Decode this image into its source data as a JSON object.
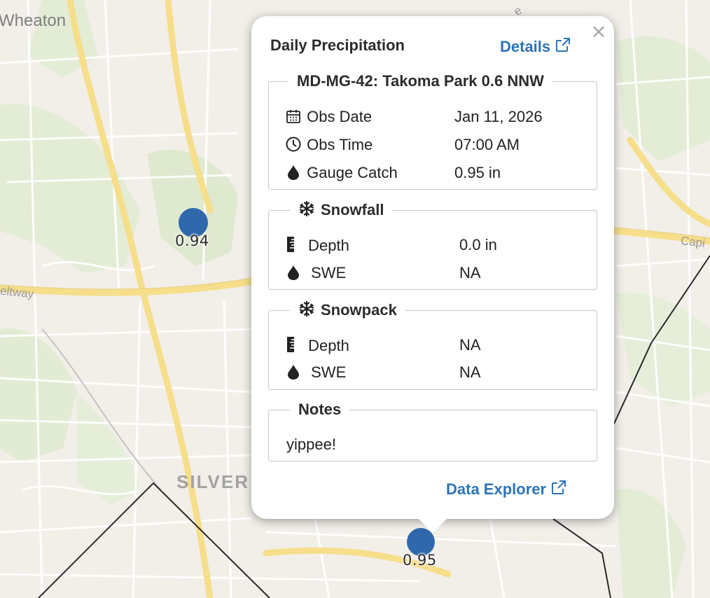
{
  "map": {
    "place_labels": {
      "wheaton": "Wheaton",
      "beltway": "eltway",
      "silver_spring": "SILVER",
      "capital": "Capi",
      "road_e": "e"
    },
    "markers": [
      {
        "value": "0.94"
      },
      {
        "value": "0.95"
      }
    ],
    "marker_color": "#2f69ac"
  },
  "popup": {
    "title": "Daily Precipitation",
    "details_link": "Details",
    "close_label": "×",
    "station": {
      "legend": "MD-MG-42: Takoma Park 0.6 NNW",
      "rows": [
        {
          "icon": "calendar-icon",
          "label": "Obs Date",
          "value": "Jan 11, 2026"
        },
        {
          "icon": "clock-icon",
          "label": "Obs Time",
          "value": "07:00 AM"
        },
        {
          "icon": "drop-icon",
          "label": "Gauge Catch",
          "value": "0.95 in"
        }
      ]
    },
    "snowfall": {
      "legend": "Snowfall",
      "rows": [
        {
          "icon": "ruler-icon",
          "label": "Depth",
          "value": "0.0 in"
        },
        {
          "icon": "drop-icon",
          "label": "SWE",
          "value": "NA"
        }
      ]
    },
    "snowpack": {
      "legend": "Snowpack",
      "rows": [
        {
          "icon": "ruler-icon",
          "label": "Depth",
          "value": "NA"
        },
        {
          "icon": "drop-icon",
          "label": "SWE",
          "value": "NA"
        }
      ]
    },
    "notes": {
      "legend": "Notes",
      "text": "yippee!"
    },
    "data_explorer_link": "Data Explorer",
    "link_color": "#2d74b6"
  }
}
